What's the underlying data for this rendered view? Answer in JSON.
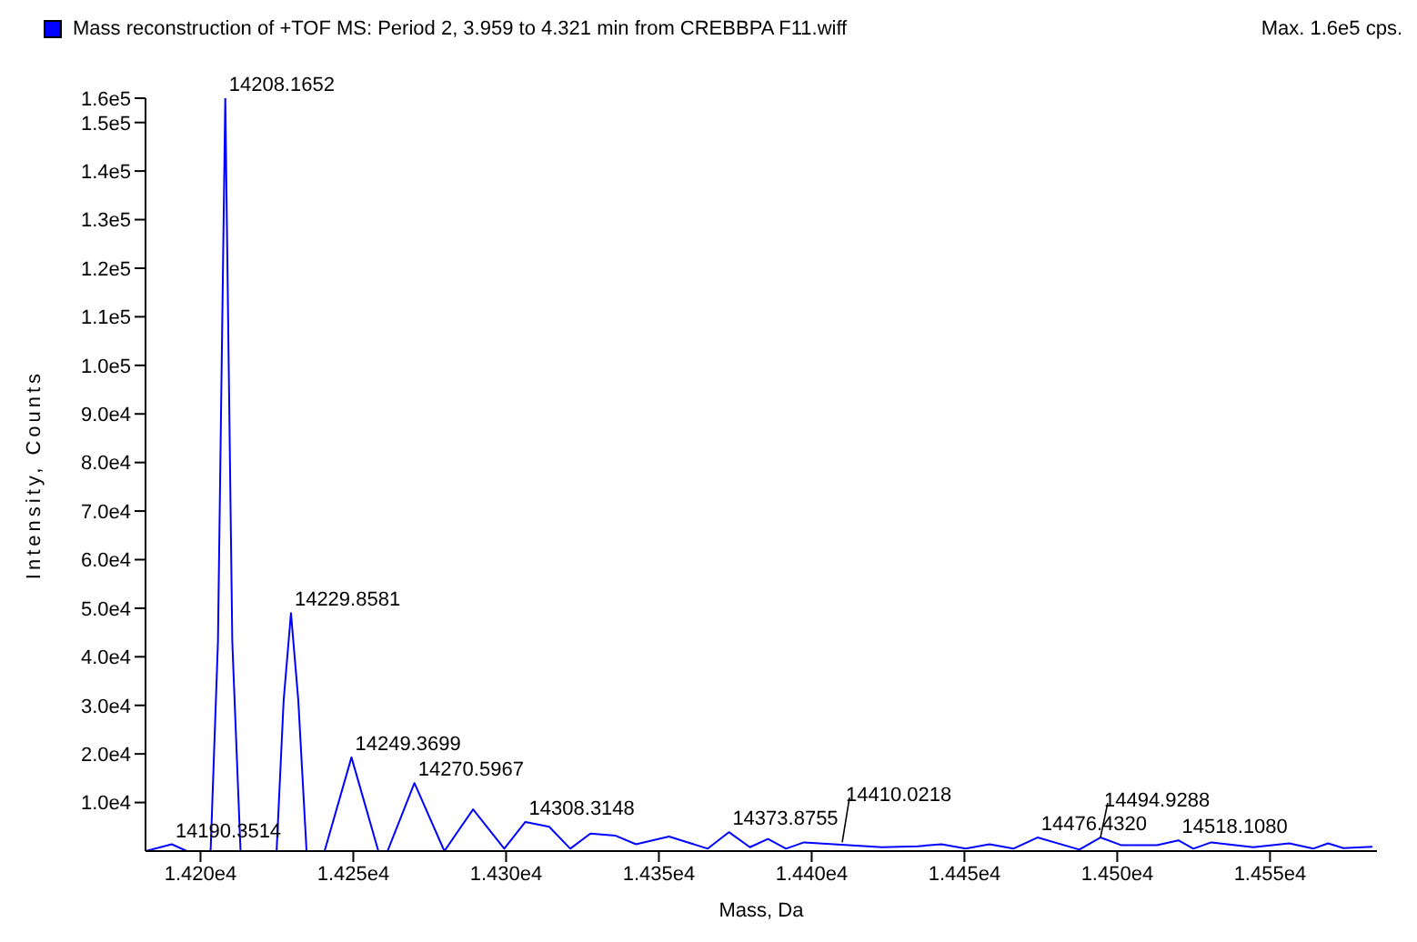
{
  "chart_data": {
    "type": "line",
    "xlabel": "Mass, Da",
    "ylabel": "Intensity, Counts",
    "legend": "top left",
    "grid": false,
    "marker": "none",
    "line_style": "solid",
    "annotations": [
      "Max. 1.6e5 cps.",
      {
        "text": "14190.3514",
        "x": 14190.6,
        "y": 1400
      },
      {
        "text": "14208.1652",
        "x": 14208.1,
        "y": 155000
      },
      {
        "text": "14229.8581",
        "x": 14229.6,
        "y": 49000
      },
      {
        "text": "14249.3699",
        "x": 14249.4,
        "y": 19300
      },
      {
        "text": "14270.5967",
        "x": 14270,
        "y": 14000
      },
      {
        "text": "14308.3148",
        "x": 14306.3,
        "y": 6000
      },
      {
        "text": "14373.8755",
        "x": 14372.9,
        "y": 3900
      },
      {
        "text": "14410.0218",
        "x": 14410,
        "y": 1800
      },
      {
        "text": "14476.4320",
        "x": 14473.9,
        "y": 2800
      },
      {
        "text": "14494.9288",
        "x": 14494.5,
        "y": 2800
      },
      {
        "text": "14518.1080",
        "x": 14520,
        "y": 2200
      }
    ],
    "xlim": [
      14182,
      14585
    ],
    "xticks": [
      {
        "value": 14200,
        "label": "1.420e4"
      },
      {
        "value": 14250,
        "label": "1.425e4"
      },
      {
        "value": 14300,
        "label": "1.430e4"
      },
      {
        "value": 14350,
        "label": "1.435e4"
      },
      {
        "value": 14400,
        "label": "1.440e4"
      },
      {
        "value": 14450,
        "label": "1.445e4"
      },
      {
        "value": 14500,
        "label": "1.450e4"
      },
      {
        "value": 14550,
        "label": "1.455e4"
      }
    ],
    "ylim": [
      0,
      155000
    ],
    "yticks": [
      {
        "value": 10000,
        "label": "1.0e4"
      },
      {
        "value": 20000,
        "label": "2.0e4"
      },
      {
        "value": 30000,
        "label": "3.0e4"
      },
      {
        "value": 40000,
        "label": "4.0e4"
      },
      {
        "value": 50000,
        "label": "5.0e4"
      },
      {
        "value": 60000,
        "label": "6.0e4"
      },
      {
        "value": 70000,
        "label": "7.0e4"
      },
      {
        "value": 80000,
        "label": "8.0e4"
      },
      {
        "value": 90000,
        "label": "9.0e4"
      },
      {
        "value": 100000,
        "label": "1.0e5"
      },
      {
        "value": 110000,
        "label": "1.1e5"
      },
      {
        "value": 120000,
        "label": "1.2e5"
      },
      {
        "value": 130000,
        "label": "1.3e5"
      },
      {
        "value": 140000,
        "label": "1.4e5"
      },
      {
        "value": 150000,
        "label": "1.5e5"
      },
      {
        "value": 155000,
        "label": "1.6e5"
      }
    ],
    "series": [
      {
        "name": "Mass reconstruction of  +TOF MS: Period 2, 3.959 to 4.321 min from CREBBPA F11.wiff",
        "color": "#0000ff",
        "x": [
          14182,
          14190.6,
          14195.5,
          14203.3,
          14205.7,
          14208.1,
          14210.4,
          14213.1,
          14224.9,
          14227.2,
          14229.6,
          14232,
          14234.7,
          14240.6,
          14249.4,
          14258.2,
          14261.2,
          14270,
          14279.8,
          14289.2,
          14299.4,
          14306.3,
          14314.1,
          14321,
          14327.6,
          14335.7,
          14342.5,
          14353.3,
          14366,
          14372.9,
          14379.8,
          14385.7,
          14391.6,
          14397.5,
          14423,
          14434.7,
          14442.5,
          14450.4,
          14458.2,
          14466,
          14473.9,
          14487.6,
          14494.5,
          14501.4,
          14513,
          14520,
          14524.9,
          14530.8,
          14544.5,
          14556.3,
          14564.1,
          14569,
          14574,
          14583.5
        ],
        "values": [
          0,
          1400,
          0,
          0,
          43000,
          155000,
          43000,
          0,
          0,
          31000,
          49000,
          31000,
          0,
          0,
          19300,
          0,
          0,
          14000,
          0,
          8600,
          500,
          6000,
          5000,
          500,
          3600,
          3200,
          1400,
          3000,
          500,
          3900,
          800,
          2500,
          500,
          1800,
          800,
          1000,
          1400,
          500,
          1400,
          500,
          2800,
          300,
          2800,
          1200,
          1200,
          2200,
          500,
          1800,
          800,
          1600,
          500,
          1600,
          600,
          900
        ]
      }
    ]
  }
}
